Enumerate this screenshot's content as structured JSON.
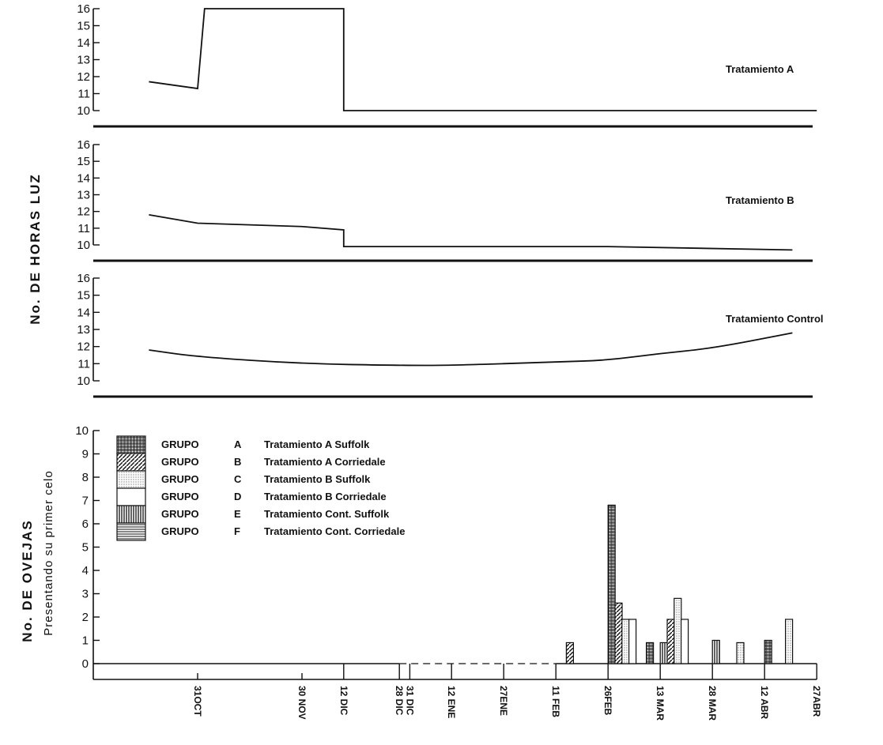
{
  "chart_data": [
    {
      "type": "line",
      "panel": "top",
      "series_label": "Tratamiento A",
      "yticks": [
        "10",
        "11",
        "12",
        "13",
        "14",
        "15",
        "16"
      ],
      "ylim": [
        10,
        16
      ],
      "x": [
        "17 OCT",
        "31 OCT",
        "02 NOV",
        "12 DIC",
        "12 DIC",
        "27 ABR"
      ],
      "y": [
        11.7,
        11.3,
        16,
        16,
        10,
        10
      ]
    },
    {
      "type": "line",
      "panel": "middle",
      "series_label": "Tratamiento B",
      "yticks": [
        "10",
        "11",
        "12",
        "13",
        "14",
        "15",
        "16"
      ],
      "ylim": [
        10,
        16
      ],
      "x": [
        "17 OCT",
        "31 OCT",
        "30 NOV",
        "12 DIC",
        "12 DIC",
        "26 FEB",
        "20 ABR"
      ],
      "y": [
        11.8,
        11.3,
        11.1,
        10.9,
        9.9,
        9.9,
        9.7
      ]
    },
    {
      "type": "line",
      "panel": "control",
      "series_label": "Tratamiento Control",
      "yticks": [
        "10",
        "11",
        "12",
        "13",
        "14",
        "15",
        "16"
      ],
      "ylim": [
        10,
        16
      ],
      "x": [
        "17 OCT",
        "31 OCT",
        "30 NOV",
        "28 DIC",
        "12 ENE",
        "11 FEB",
        "26 FEB",
        "13 MAR",
        "28 MAR",
        "20 ABR"
      ],
      "y": [
        11.8,
        11.4,
        11.0,
        10.9,
        10.9,
        11.1,
        11.2,
        11.6,
        11.9,
        12.8
      ]
    },
    {
      "type": "bar",
      "panel": "bottom",
      "yticks": [
        "0",
        "1",
        "2",
        "3",
        "4",
        "5",
        "6",
        "7",
        "8",
        "9",
        "10"
      ],
      "ylim": [
        0,
        10
      ],
      "categories": [
        "31OCT",
        "30 NOV",
        "12 DIC",
        "28 DIC",
        "31 DIC",
        "12 ENE",
        "27ENE",
        "11 FEB",
        "26FEB",
        "13 MAR",
        "28 MAR",
        "12 ABR",
        "27ABR"
      ],
      "legend": [
        {
          "group": "GRUPO",
          "letter": "A",
          "label": "Tratamiento A Suffolk",
          "pattern": "grid"
        },
        {
          "group": "GRUPO",
          "letter": "B",
          "label": "Tratamiento A Corriedale",
          "pattern": "diag"
        },
        {
          "group": "GRUPO",
          "letter": "C",
          "label": "Tratamiento B Suffolk",
          "pattern": "dots"
        },
        {
          "group": "GRUPO",
          "letter": "D",
          "label": "Tratamiento B Corriedale",
          "pattern": "blank"
        },
        {
          "group": "GRUPO",
          "letter": "E",
          "label": "Tratamiento Cont. Suffolk",
          "pattern": "vert"
        },
        {
          "group": "GRUPO",
          "letter": "F",
          "label": "Tratamiento Cont. Corriedale",
          "pattern": "horiz"
        }
      ],
      "bars": [
        {
          "date": "14 FEB",
          "pattern": "diag",
          "value": 0.9
        },
        {
          "date": "26 FEB",
          "pattern": "grid",
          "value": 6.8
        },
        {
          "date": "28 FEB",
          "pattern": "diag",
          "value": 2.6
        },
        {
          "date": "2 MAR",
          "pattern": "dots",
          "value": 1.9
        },
        {
          "date": "4 MAR",
          "pattern": "blank",
          "value": 1.9
        },
        {
          "date": "9 MAR",
          "pattern": "grid",
          "value": 0.9
        },
        {
          "date": "13 MAR",
          "pattern": "vert",
          "value": 0.9
        },
        {
          "date": "15 MAR",
          "pattern": "diag",
          "value": 1.9
        },
        {
          "date": "17 MAR",
          "pattern": "dots",
          "value": 2.8
        },
        {
          "date": "19 MAR",
          "pattern": "blank",
          "value": 1.9
        },
        {
          "date": "28 MAR",
          "pattern": "vert",
          "value": 1.0
        },
        {
          "date": "4 ABR",
          "pattern": "dots",
          "value": 0.9
        },
        {
          "date": "12 ABR",
          "pattern": "grid",
          "value": 1.0
        },
        {
          "date": "18 ABR",
          "pattern": "dots",
          "value": 1.9
        }
      ]
    }
  ],
  "labels": {
    "ylabel_top": "No. DE HORAS LUZ",
    "ylabel_bottom_1": "No. DE OVEJAS",
    "ylabel_bottom_2": "Presentando su primer celo"
  }
}
